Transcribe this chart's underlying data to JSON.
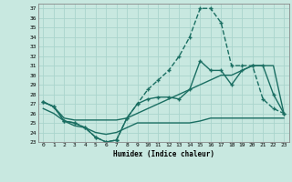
{
  "xlabel": "Humidex (Indice chaleur)",
  "xlim": [
    -0.5,
    23.5
  ],
  "ylim": [
    23,
    37.5
  ],
  "yticks": [
    23,
    24,
    25,
    26,
    27,
    28,
    29,
    30,
    31,
    32,
    33,
    34,
    35,
    36,
    37
  ],
  "xticks": [
    0,
    1,
    2,
    3,
    4,
    5,
    6,
    7,
    8,
    9,
    10,
    11,
    12,
    13,
    14,
    15,
    16,
    17,
    18,
    19,
    20,
    21,
    22,
    23
  ],
  "bg_color": "#c8e8e0",
  "grid_color": "#aad4cc",
  "line_color": "#1a6e62",
  "lines": [
    {
      "x": [
        0,
        1,
        2,
        3,
        4,
        5,
        6,
        7,
        8,
        9,
        10,
        11,
        12,
        13,
        14,
        15,
        16,
        17,
        18,
        19,
        20,
        21,
        22,
        23
      ],
      "y": [
        27.2,
        26.7,
        25.2,
        25.0,
        24.5,
        23.5,
        23.0,
        23.2,
        25.5,
        27.0,
        28.5,
        29.5,
        30.5,
        32.0,
        34.0,
        37.0,
        37.0,
        35.5,
        31.0,
        31.0,
        31.0,
        27.5,
        26.5,
        26.0
      ],
      "marker": "+",
      "markersize": 3.5,
      "linewidth": 1.0,
      "linestyle": "--"
    },
    {
      "x": [
        0,
        1,
        2,
        3,
        4,
        5,
        6,
        7,
        8,
        9,
        10,
        11,
        12,
        13,
        14,
        15,
        16,
        17,
        18,
        19,
        20,
        21,
        22,
        23
      ],
      "y": [
        27.2,
        26.7,
        25.2,
        25.0,
        24.5,
        23.5,
        23.0,
        23.2,
        25.5,
        27.0,
        27.5,
        27.7,
        27.7,
        27.5,
        28.5,
        31.5,
        30.5,
        30.5,
        29.0,
        30.5,
        31.0,
        31.0,
        28.0,
        26.0
      ],
      "marker": "+",
      "markersize": 3.5,
      "linewidth": 1.0,
      "linestyle": "-"
    },
    {
      "x": [
        0,
        1,
        2,
        3,
        4,
        5,
        6,
        7,
        8,
        9,
        10,
        11,
        12,
        13,
        14,
        15,
        16,
        17,
        18,
        19,
        20,
        21,
        22,
        23
      ],
      "y": [
        27.2,
        26.7,
        25.5,
        25.3,
        25.3,
        25.3,
        25.3,
        25.3,
        25.5,
        26.0,
        26.5,
        27.0,
        27.5,
        28.0,
        28.5,
        29.0,
        29.5,
        30.0,
        30.0,
        30.5,
        31.0,
        31.0,
        31.0,
        26.0
      ],
      "marker": null,
      "markersize": 0,
      "linewidth": 1.0,
      "linestyle": "-"
    },
    {
      "x": [
        0,
        1,
        2,
        3,
        4,
        5,
        6,
        7,
        8,
        9,
        10,
        11,
        12,
        13,
        14,
        15,
        16,
        17,
        18,
        19,
        20,
        21,
        22,
        23
      ],
      "y": [
        26.5,
        26.0,
        25.2,
        24.7,
        24.5,
        24.0,
        23.8,
        24.0,
        24.5,
        25.0,
        25.0,
        25.0,
        25.0,
        25.0,
        25.0,
        25.2,
        25.5,
        25.5,
        25.5,
        25.5,
        25.5,
        25.5,
        25.5,
        25.5
      ],
      "marker": null,
      "markersize": 0,
      "linewidth": 1.0,
      "linestyle": "-"
    }
  ]
}
